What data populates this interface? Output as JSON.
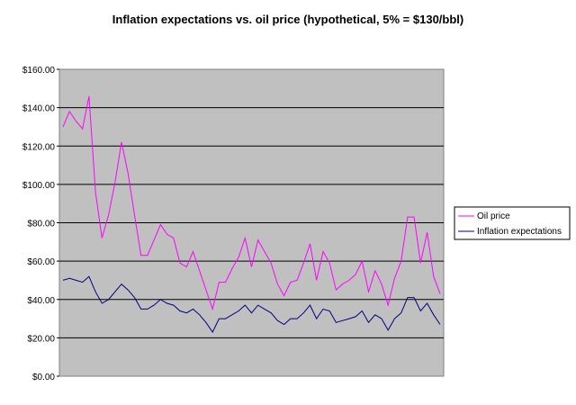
{
  "chart_data": {
    "type": "line",
    "title": "Inflation expectations vs. oil price (hypothetical, 5% = $130/bbl)",
    "xlabel": "",
    "ylabel": "",
    "ylim": [
      0,
      160
    ],
    "y_ticks": [
      "$0.00",
      "$20.00",
      "$40.00",
      "$60.00",
      "$80.00",
      "$100.00",
      "$120.00",
      "$140.00",
      "$160.00"
    ],
    "y_tick_values": [
      0,
      20,
      40,
      60,
      80,
      100,
      120,
      140,
      160
    ],
    "grid": true,
    "plot_background": "#c0c0c0",
    "legend_position": "right",
    "series": [
      {
        "name": "Oil price",
        "color": "#ff00ff",
        "values": [
          130,
          138,
          133,
          129,
          146,
          96,
          72,
          84,
          101,
          122,
          106,
          84,
          63,
          63,
          71,
          79,
          74,
          72,
          59,
          57,
          65,
          55,
          45,
          35,
          49,
          49,
          56,
          62,
          72,
          57,
          71,
          65,
          59,
          48,
          42,
          49,
          50,
          59,
          69,
          50,
          65,
          59,
          45,
          48,
          50,
          53,
          60,
          44,
          55,
          48,
          37,
          51,
          60,
          83,
          83,
          59,
          75,
          52,
          43
        ]
      },
      {
        "name": "Inflation expectations",
        "color": "#000080",
        "values": [
          50,
          51,
          50,
          49,
          52,
          44,
          38,
          40,
          44,
          48,
          45,
          41,
          35,
          35,
          37,
          40,
          38,
          37,
          34,
          33,
          35,
          32,
          28,
          23,
          30,
          30,
          32,
          34,
          37,
          33,
          37,
          35,
          33,
          29,
          27,
          30,
          30,
          33,
          37,
          30,
          35,
          34,
          28,
          29,
          30,
          31,
          34,
          28,
          32,
          30,
          24,
          30,
          33,
          41,
          41,
          34,
          38,
          32,
          27
        ]
      }
    ]
  }
}
